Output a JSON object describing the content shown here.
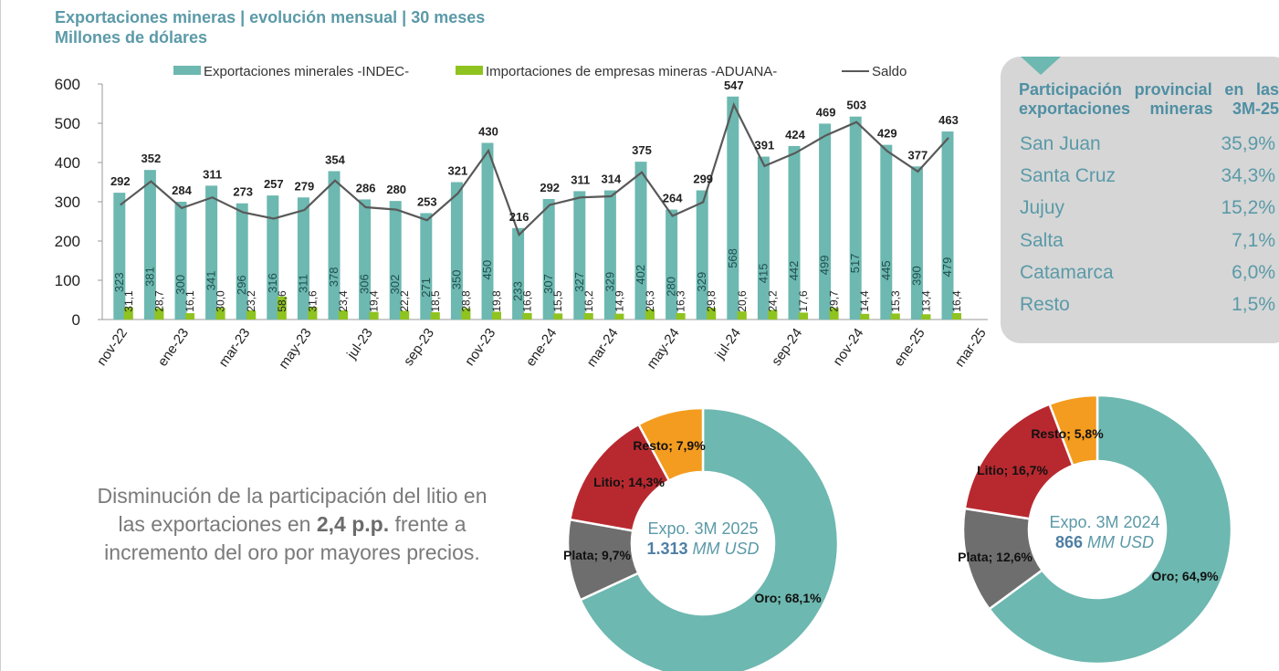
{
  "header": {
    "title": "Exportaciones mineras | evolución mensual | 30 meses",
    "subtitle": "Millones de dólares"
  },
  "chart_data": [
    {
      "type": "bar",
      "legend": [
        {
          "name": "Exportaciones minerales -INDEC-",
          "color": "#6db8b0",
          "kind": "bar"
        },
        {
          "name": "Importaciones de empresas mineras -ADUANA-",
          "color": "#8fc31f",
          "kind": "bar"
        },
        {
          "name": "Saldo",
          "color": "#595959",
          "kind": "line"
        }
      ],
      "legend_position": "top",
      "ylim": [
        0,
        600
      ],
      "yticks": [
        0,
        100,
        200,
        300,
        400,
        500,
        600
      ],
      "x_tick_labels": [
        "nov-22",
        "ene-23",
        "mar-23",
        "may-23",
        "jul-23",
        "sep-23",
        "nov-23",
        "ene-24",
        "mar-24",
        "may-24",
        "jul-24",
        "sep-24",
        "nov-24",
        "ene-25",
        "mar-25"
      ],
      "series": [
        {
          "name": "Exportaciones minerales -INDEC-",
          "values": [
            323,
            381,
            300,
            341,
            296,
            316,
            311,
            378,
            306,
            302,
            271,
            350,
            450,
            233,
            307,
            327,
            329,
            402,
            280,
            329,
            568,
            415,
            442,
            499,
            517,
            445,
            390,
            479
          ]
        },
        {
          "name": "Importaciones de empresas mineras -ADUANA-",
          "values": [
            "31,1",
            "28,7",
            "16,1",
            "30,0",
            "23,2",
            "58,6",
            "31,6",
            "23,4",
            "19,4",
            "22,2",
            "18,5",
            "28,8",
            "19,8",
            "16,6",
            "15,5",
            "16,2",
            "14,9",
            "26,3",
            "16,3",
            "29,8",
            "20,6",
            "24,2",
            "17,6",
            "29,7",
            "14,4",
            "15,3",
            "13,4",
            "16,4"
          ]
        },
        {
          "name": "Saldo",
          "values": [
            292,
            352,
            284,
            311,
            273,
            257,
            279,
            354,
            286,
            280,
            253,
            321,
            430,
            216,
            292,
            311,
            314,
            375,
            264,
            299,
            547,
            391,
            424,
            469,
            503,
            429,
            377,
            463
          ]
        }
      ]
    },
    {
      "type": "pie",
      "center_title": "Expo. 3M 2025",
      "center_value": "1.313",
      "center_unit": "MM USD",
      "slices": [
        {
          "label": "Oro; 68,1%",
          "value": 68.1,
          "color": "#6db8b0"
        },
        {
          "label": "Plata; 9,7%",
          "value": 9.7,
          "color": "#6e6e6e"
        },
        {
          "label": "Litio; 14,3%",
          "value": 14.3,
          "color": "#b8292f"
        },
        {
          "label": "Resto; 7,9%",
          "value": 7.9,
          "color": "#f39c1f"
        }
      ]
    },
    {
      "type": "pie",
      "center_title": "Expo. 3M 2024",
      "center_value": "866",
      "center_unit": "MM USD",
      "slices": [
        {
          "label": "Oro; 64,9%",
          "value": 64.9,
          "color": "#6db8b0"
        },
        {
          "label": "Plata; 12,6%",
          "value": 12.6,
          "color": "#6e6e6e"
        },
        {
          "label": "Litio; 16,7%",
          "value": 16.7,
          "color": "#b8292f"
        },
        {
          "label": "Resto; 5,8%",
          "value": 5.8,
          "color": "#f39c1f"
        }
      ]
    }
  ],
  "provincial_panel": {
    "title": "Participación provincial en las exportaciones mineras 3M-25",
    "rows": [
      {
        "name": "San Juan",
        "value": "35,9%"
      },
      {
        "name": "Santa Cruz",
        "value": "34,3%"
      },
      {
        "name": "Jujuy",
        "value": "15,2%"
      },
      {
        "name": "Salta",
        "value": "7,1%"
      },
      {
        "name": "Catamarca",
        "value": "6,0%"
      },
      {
        "name": "Resto",
        "value": "1,5%"
      }
    ]
  },
  "note": {
    "text_before": "Disminución de la participación del litio en las exportaciones en ",
    "highlight": "2,4 p.p.",
    "text_after": " frente a incremento del oro por mayores precios."
  }
}
